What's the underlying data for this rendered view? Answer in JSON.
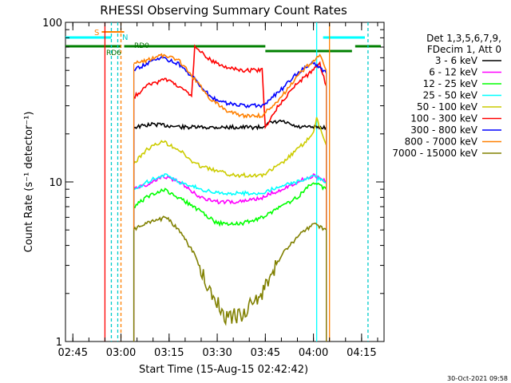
{
  "chart_data": {
    "type": "line",
    "title": "RHESSI Observing Summary Count Rates",
    "xlabel": "Start Time (15-Aug-15 02:42:42)",
    "ylabel": "Count Rate (s⁻¹ detector⁻¹)",
    "yscale": "log",
    "ylim": [
      1,
      100
    ],
    "xlim": [
      "02:42:42",
      "04:22:00"
    ],
    "x_ticks": [
      "02:45",
      "03:00",
      "03:15",
      "03:30",
      "03:45",
      "04:00",
      "04:15"
    ],
    "y_ticks": [
      "1",
      "10",
      "100"
    ],
    "grid": false,
    "legend_placement": "right",
    "legend_header": [
      "Det 1,3,5,6,7,9,",
      "FDecim 1, Att 0"
    ],
    "footer_timestamp": "30-Oct-2021 09:58",
    "flag_labels": [
      "S",
      "N",
      "RD6",
      "RD0"
    ],
    "series": [
      {
        "name": "3 - 6 keV",
        "color": "#000000",
        "points": [
          [
            "03:04",
            22
          ],
          [
            "03:10",
            23
          ],
          [
            "03:20",
            22
          ],
          [
            "03:30",
            22
          ],
          [
            "03:44",
            22
          ],
          [
            "03:45",
            23
          ],
          [
            "03:50",
            24
          ],
          [
            "03:55",
            22
          ],
          [
            "04:00",
            22
          ],
          [
            "04:04",
            22
          ]
        ]
      },
      {
        "name": "6 - 12 keV",
        "color": "#ff00ff",
        "points": [
          [
            "03:04",
            9
          ],
          [
            "03:10",
            10
          ],
          [
            "03:13",
            11
          ],
          [
            "03:18",
            10
          ],
          [
            "03:25",
            8
          ],
          [
            "03:30",
            7.5
          ],
          [
            "03:38",
            7.5
          ],
          [
            "03:44",
            8
          ],
          [
            "03:50",
            9
          ],
          [
            "03:55",
            10
          ],
          [
            "04:00",
            11
          ],
          [
            "04:04",
            10
          ]
        ]
      },
      {
        "name": "12 - 25 keV",
        "color": "#00ff00",
        "points": [
          [
            "03:04",
            7
          ],
          [
            "03:08",
            8
          ],
          [
            "03:13",
            9
          ],
          [
            "03:18",
            8
          ],
          [
            "03:25",
            6.5
          ],
          [
            "03:30",
            5.5
          ],
          [
            "03:38",
            5.5
          ],
          [
            "03:44",
            6
          ],
          [
            "03:50",
            7
          ],
          [
            "03:55",
            8
          ],
          [
            "04:00",
            10
          ],
          [
            "04:04",
            9
          ]
        ]
      },
      {
        "name": "25 - 50 keV",
        "color": "#00ffff",
        "points": [
          [
            "03:04",
            9
          ],
          [
            "03:10",
            10.5
          ],
          [
            "03:14",
            11
          ],
          [
            "03:18",
            10
          ],
          [
            "03:25",
            9
          ],
          [
            "03:30",
            8.5
          ],
          [
            "03:38",
            8.5
          ],
          [
            "03:44",
            8.5
          ],
          [
            "03:50",
            9.5
          ],
          [
            "03:55",
            10
          ],
          [
            "04:00",
            11
          ],
          [
            "04:04",
            10
          ]
        ]
      },
      {
        "name": "50 - 100 keV",
        "color": "#cccc00",
        "points": [
          [
            "03:04",
            13
          ],
          [
            "03:08",
            16
          ],
          [
            "03:13",
            18
          ],
          [
            "03:18",
            16
          ],
          [
            "03:23",
            13
          ],
          [
            "03:28",
            12
          ],
          [
            "03:35",
            11
          ],
          [
            "03:44",
            11
          ],
          [
            "03:50",
            13
          ],
          [
            "03:55",
            16
          ],
          [
            "04:00",
            20
          ],
          [
            "04:01",
            25
          ],
          [
            "04:04",
            17
          ]
        ]
      },
      {
        "name": "100 - 300 keV",
        "color": "#ff0000",
        "points": [
          [
            "03:04",
            34
          ],
          [
            "03:08",
            40
          ],
          [
            "03:14",
            44
          ],
          [
            "03:18",
            40
          ],
          [
            "03:22",
            34
          ],
          [
            "03:23",
            70
          ],
          [
            "03:28",
            58
          ],
          [
            "03:33",
            52
          ],
          [
            "03:38",
            50
          ],
          [
            "03:44",
            50
          ],
          [
            "03:45",
            22
          ],
          [
            "03:48",
            28
          ],
          [
            "03:54",
            40
          ],
          [
            "04:00",
            50
          ],
          [
            "04:02",
            55
          ],
          [
            "04:04",
            40
          ]
        ]
      },
      {
        "name": "300 - 800 keV",
        "color": "#0000ff",
        "points": [
          [
            "03:04",
            50
          ],
          [
            "03:08",
            55
          ],
          [
            "03:13",
            60
          ],
          [
            "03:18",
            55
          ],
          [
            "03:23",
            44
          ],
          [
            "03:28",
            34
          ],
          [
            "03:33",
            31
          ],
          [
            "03:38",
            30
          ],
          [
            "03:44",
            30
          ],
          [
            "03:50",
            38
          ],
          [
            "03:55",
            48
          ],
          [
            "04:00",
            56
          ],
          [
            "04:04",
            48
          ]
        ]
      },
      {
        "name": "800 - 7000 keV",
        "color": "#ff8000",
        "points": [
          [
            "03:04",
            55
          ],
          [
            "03:08",
            58
          ],
          [
            "03:13",
            62
          ],
          [
            "03:18",
            58
          ],
          [
            "03:23",
            44
          ],
          [
            "03:28",
            33
          ],
          [
            "03:33",
            28
          ],
          [
            "03:38",
            26
          ],
          [
            "03:44",
            26
          ],
          [
            "03:50",
            34
          ],
          [
            "03:55",
            46
          ],
          [
            "04:00",
            58
          ],
          [
            "04:02",
            62
          ],
          [
            "04:04",
            50
          ]
        ]
      },
      {
        "name": "7000 - 15000 keV",
        "color": "#808000",
        "points": [
          [
            "03:04",
            5
          ],
          [
            "03:08",
            5.5
          ],
          [
            "03:14",
            6
          ],
          [
            "03:18",
            5
          ],
          [
            "03:23",
            3.5
          ],
          [
            "03:28",
            2
          ],
          [
            "03:33",
            1.4
          ],
          [
            "03:38",
            1.5
          ],
          [
            "03:44",
            2
          ],
          [
            "03:50",
            3.5
          ],
          [
            "03:55",
            4.5
          ],
          [
            "04:00",
            5.5
          ],
          [
            "04:04",
            5
          ]
        ]
      }
    ]
  }
}
